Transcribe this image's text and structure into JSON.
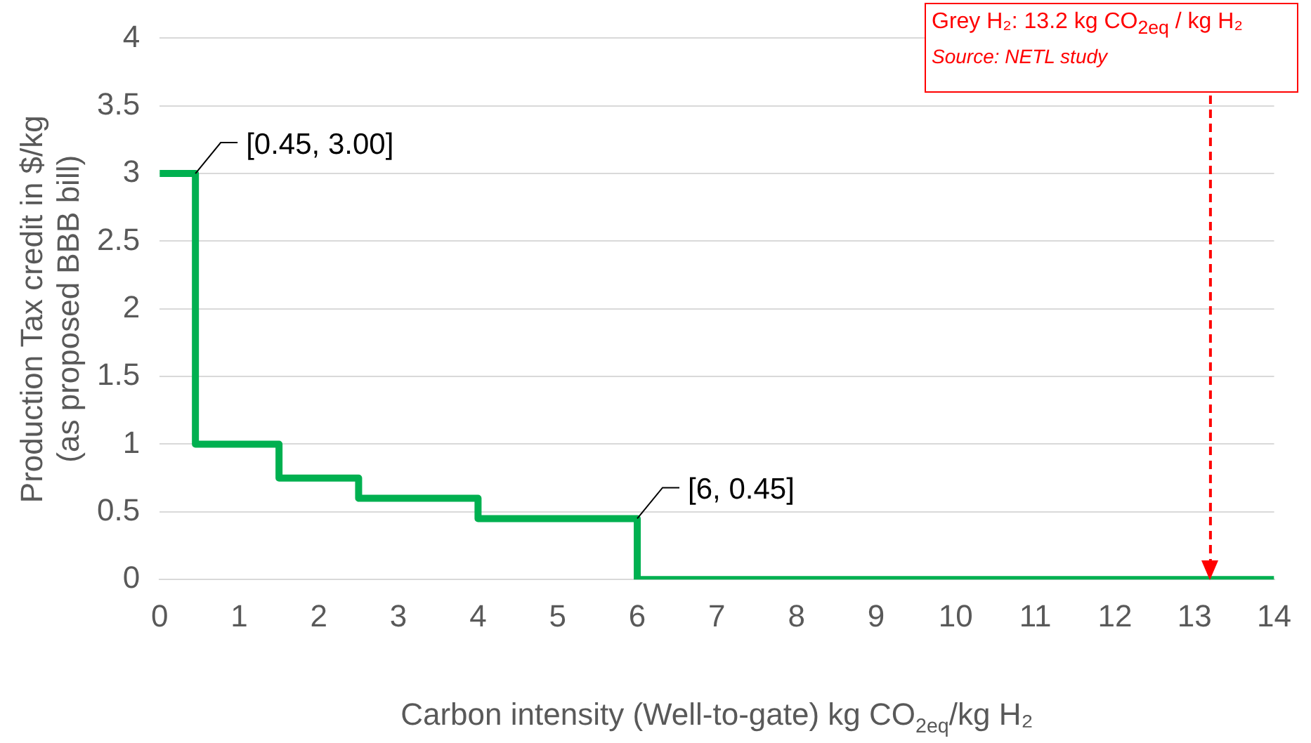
{
  "chart_data": {
    "type": "line",
    "xlabel": "Carbon intensity (Well-to-gate) kg CO$_{2eq}$/kg H₂",
    "ylabel": "Production Tax credit in $/kg\n(as proposed BBB bill)",
    "x": [
      0,
      0.45,
      0.45,
      1.5,
      1.5,
      2.5,
      2.5,
      4,
      4,
      6,
      6,
      14
    ],
    "series": [
      {
        "color": "#00b050",
        "values": [
          3,
          3,
          1,
          1,
          0.75,
          0.75,
          0.6,
          0.6,
          0.45,
          0.45,
          0,
          0
        ]
      }
    ],
    "xlim": [
      0,
      14
    ],
    "xticks": [
      0,
      1,
      2,
      3,
      4,
      5,
      6,
      7,
      8,
      9,
      10,
      11,
      12,
      13,
      14
    ],
    "ylim": [
      0,
      4
    ],
    "yticks": [
      0,
      0.5,
      1,
      1.5,
      2,
      2.5,
      3,
      3.5,
      4
    ],
    "grid": "y",
    "legend": false,
    "marker": "none",
    "ref_lines": [
      {
        "axis": "x",
        "value": 13.2,
        "label": "Grey H₂: 13.2 kg CO$_{2eq}$ / kg H₂",
        "color": "#ff0000",
        "line_style": "dashed"
      }
    ],
    "annotations": [
      {
        "text": "[0.45, 3.00]",
        "x": 0.45,
        "y": 3
      },
      {
        "text": "[6, 0.45]",
        "x": 6,
        "y": 0.45
      },
      "Source: NETL study"
    ]
  }
}
